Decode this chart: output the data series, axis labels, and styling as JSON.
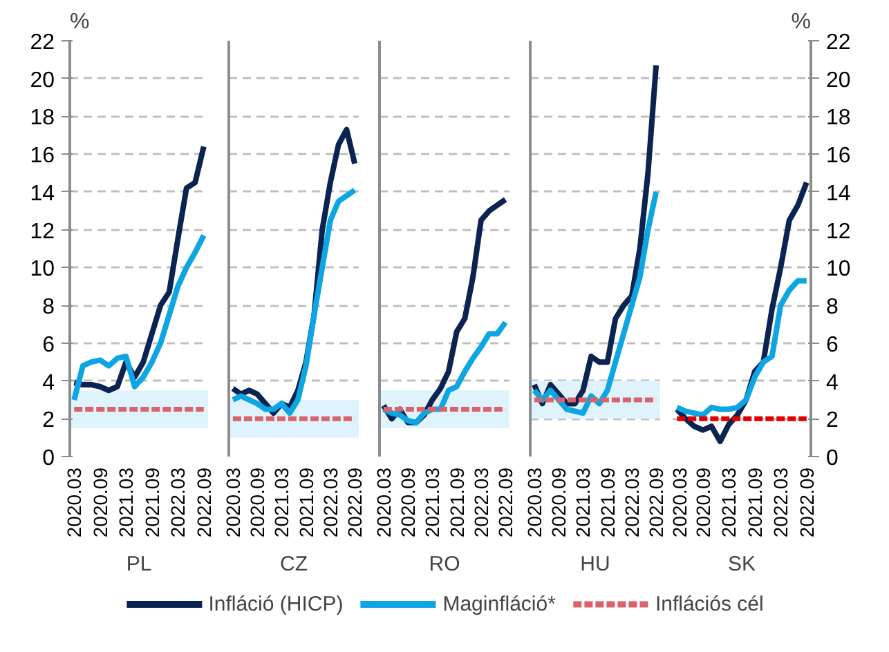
{
  "chart_data": [
    {
      "type": "line",
      "xlabel": "PL",
      "ylabel": "%",
      "x": [
        "2020-03",
        "2020-05",
        "2020-07",
        "2020-09",
        "2020-11",
        "2021-01",
        "2021-03",
        "2021-05",
        "2021-07",
        "2021-09",
        "2021-11",
        "2022-01",
        "2022-03",
        "2022-05",
        "2022-07",
        "2022-09"
      ],
      "xlim": [
        "2020-02",
        "2022-10"
      ],
      "xticks": [
        {
          "value": "2020-03",
          "label": "2020.03"
        },
        {
          "value": "2020-09",
          "label": "2020.09"
        },
        {
          "value": "2021-03",
          "label": "2021.03"
        },
        {
          "value": "2021-09",
          "label": "2021.09"
        },
        {
          "value": "2022-03",
          "label": "2022.03"
        },
        {
          "value": "2022-09",
          "label": "2022.09"
        }
      ],
      "ylim": [
        0,
        22
      ],
      "yticks": [
        0,
        2,
        4,
        6,
        8,
        10,
        12,
        14,
        16,
        18,
        20,
        22
      ],
      "grid": "y",
      "legend": "bottom",
      "bands": [
        {
          "axis": "y",
          "from": 1.5,
          "to": 3.5,
          "color": "#dff3fc"
        }
      ],
      "series": [
        {
          "name": "Infláció (HICP)",
          "color": "#0b2350",
          "values": [
            3.9,
            3.8,
            3.8,
            3.7,
            3.5,
            3.7,
            5.0,
            4.2,
            5.0,
            6.5,
            8.0,
            8.7,
            11.5,
            14.2,
            14.5,
            16.4
          ]
        },
        {
          "name": "Maginfláció*",
          "color": "#0ea5e3",
          "values": [
            3.0,
            4.8,
            5.0,
            5.1,
            4.8,
            5.2,
            5.3,
            3.7,
            4.2,
            5.0,
            6.0,
            7.5,
            9.0,
            10.0,
            10.8,
            11.7
          ]
        },
        {
          "name": "Inflációs cél",
          "color": "#d9636a",
          "line_style": "dashed",
          "values": [
            2.5,
            2.5,
            2.5,
            2.5,
            2.5,
            2.5,
            2.5,
            2.5,
            2.5,
            2.5,
            2.5,
            2.5,
            2.5,
            2.5,
            2.5,
            2.5
          ]
        }
      ]
    },
    {
      "type": "line",
      "xlabel": "CZ",
      "x": [
        "2020-03",
        "2020-05",
        "2020-07",
        "2020-09",
        "2020-11",
        "2021-01",
        "2021-03",
        "2021-05",
        "2021-07",
        "2021-09",
        "2021-11",
        "2022-01",
        "2022-03",
        "2022-05",
        "2022-07",
        "2022-09"
      ],
      "xlim": [
        "2020-02",
        "2022-10"
      ],
      "xticks": [
        {
          "value": "2020-03",
          "label": "2020.03"
        },
        {
          "value": "2020-09",
          "label": "2020.09"
        },
        {
          "value": "2021-03",
          "label": "2021.03"
        },
        {
          "value": "2021-09",
          "label": "2021.09"
        },
        {
          "value": "2022-03",
          "label": "2022.03"
        },
        {
          "value": "2022-09",
          "label": "2022.09"
        }
      ],
      "ylim": [
        0,
        22
      ],
      "yticks": [
        0,
        2,
        4,
        6,
        8,
        10,
        12,
        14,
        16,
        18,
        20,
        22
      ],
      "grid": "y",
      "tick_labels": "x",
      "bands": [
        {
          "axis": "y",
          "from": 1,
          "to": 3,
          "color": "#dff3fc"
        }
      ],
      "series": [
        {
          "color": "#0b2350",
          "values": [
            3.6,
            3.3,
            3.5,
            3.3,
            2.8,
            2.3,
            2.8,
            2.6,
            3.5,
            5.0,
            7.5,
            12.0,
            14.5,
            16.5,
            17.3,
            15.5
          ]
        },
        {
          "color": "#0ea5e3",
          "values": [
            3.0,
            3.2,
            3.0,
            2.8,
            2.5,
            2.5,
            2.8,
            2.3,
            3.0,
            4.8,
            7.5,
            10.0,
            12.5,
            13.5,
            13.8,
            14.1
          ]
        },
        {
          "color": "#d9636a",
          "line_style": "dashed",
          "values": [
            2,
            2,
            2,
            2,
            2,
            2,
            2,
            2,
            2,
            2,
            2,
            2,
            2,
            2,
            2,
            2
          ]
        }
      ]
    },
    {
      "type": "line",
      "xlabel": "RO",
      "x": [
        "2020-03",
        "2020-05",
        "2020-07",
        "2020-09",
        "2020-11",
        "2021-01",
        "2021-03",
        "2021-05",
        "2021-07",
        "2021-09",
        "2021-11",
        "2022-01",
        "2022-03",
        "2022-05",
        "2022-07",
        "2022-09"
      ],
      "xlim": [
        "2020-02",
        "2022-10"
      ],
      "xticks": [
        {
          "value": "2020-03",
          "label": "2020.03"
        },
        {
          "value": "2020-09",
          "label": "2020.09"
        },
        {
          "value": "2021-03",
          "label": "2021.03"
        },
        {
          "value": "2021-09",
          "label": "2021.09"
        },
        {
          "value": "2022-03",
          "label": "2022.03"
        },
        {
          "value": "2022-09",
          "label": "2022.09"
        }
      ],
      "ylim": [
        0,
        22
      ],
      "yticks": [
        0,
        2,
        4,
        6,
        8,
        10,
        12,
        14,
        16,
        18,
        20,
        22
      ],
      "grid": "y",
      "tick_labels": "x",
      "bands": [
        {
          "axis": "y",
          "from": 1.5,
          "to": 3.5,
          "color": "#dff3fc"
        }
      ],
      "series": [
        {
          "color": "#0b2350",
          "values": [
            2.7,
            2.0,
            2.5,
            1.8,
            1.8,
            2.2,
            3.0,
            3.6,
            4.5,
            6.6,
            7.3,
            9.5,
            12.5,
            13.0,
            13.3,
            13.6
          ]
        },
        {
          "color": "#0ea5e3",
          "values": [
            2.5,
            2.3,
            2.2,
            1.9,
            1.8,
            2.3,
            2.5,
            2.5,
            3.5,
            3.7,
            4.5,
            5.2,
            5.8,
            6.5,
            6.5,
            7.1
          ]
        },
        {
          "color": "#d9636a",
          "line_style": "dashed",
          "values": [
            2.5,
            2.5,
            2.5,
            2.5,
            2.5,
            2.5,
            2.5,
            2.5,
            2.5,
            2.5,
            2.5,
            2.5,
            2.5,
            2.5,
            2.5,
            2.5
          ]
        }
      ]
    },
    {
      "type": "line",
      "xlabel": "HU",
      "x": [
        "2020-03",
        "2020-05",
        "2020-07",
        "2020-09",
        "2020-11",
        "2021-01",
        "2021-03",
        "2021-05",
        "2021-07",
        "2021-09",
        "2021-11",
        "2022-01",
        "2022-03",
        "2022-05",
        "2022-07",
        "2022-09"
      ],
      "xlim": [
        "2020-02",
        "2022-10"
      ],
      "xticks": [
        {
          "value": "2020-03",
          "label": "2020.03"
        },
        {
          "value": "2020-09",
          "label": "2020.09"
        },
        {
          "value": "2021-03",
          "label": "2021.03"
        },
        {
          "value": "2021-09",
          "label": "2021.09"
        },
        {
          "value": "2022-03",
          "label": "2022.03"
        },
        {
          "value": "2022-09",
          "label": "2022.09"
        }
      ],
      "ylim": [
        0,
        22
      ],
      "yticks": [
        0,
        2,
        4,
        6,
        8,
        10,
        12,
        14,
        16,
        18,
        20,
        22
      ],
      "grid": "y",
      "tick_labels": "x",
      "bands": [
        {
          "axis": "y",
          "from": 2,
          "to": 4,
          "color": "#dff3fc"
        }
      ],
      "series": [
        {
          "color": "#0b2350",
          "values": [
            3.8,
            2.8,
            3.8,
            3.3,
            2.8,
            2.8,
            3.5,
            5.3,
            5.0,
            5.0,
            7.3,
            8.0,
            8.5,
            11.0,
            15.0,
            20.7
          ]
        },
        {
          "color": "#0ea5e3",
          "values": [
            3.5,
            3.0,
            3.5,
            3.0,
            2.5,
            2.4,
            2.3,
            3.2,
            2.8,
            3.5,
            5.0,
            6.5,
            8.0,
            9.5,
            12.0,
            14.0
          ]
        },
        {
          "color": "#d9636a",
          "line_style": "dashed",
          "values": [
            3,
            3,
            3,
            3,
            3,
            3,
            3,
            3,
            3,
            3,
            3,
            3,
            3,
            3,
            3,
            3
          ]
        }
      ]
    },
    {
      "type": "line",
      "xlabel": "SK",
      "ylabel": "%",
      "x": [
        "2020-03",
        "2020-05",
        "2020-07",
        "2020-09",
        "2020-11",
        "2021-01",
        "2021-03",
        "2021-05",
        "2021-07",
        "2021-09",
        "2021-11",
        "2022-01",
        "2022-03",
        "2022-05",
        "2022-07",
        "2022-09"
      ],
      "xlim": [
        "2020-02",
        "2022-10"
      ],
      "xticks": [
        {
          "value": "2020-03",
          "label": "2020.03"
        },
        {
          "value": "2020-09",
          "label": "2020.09"
        },
        {
          "value": "2021-03",
          "label": "2021.03"
        },
        {
          "value": "2021-09",
          "label": "2021.09"
        },
        {
          "value": "2022-03",
          "label": "2022.03"
        },
        {
          "value": "2022-09",
          "label": "2022.09"
        }
      ],
      "ylim": [
        0,
        22
      ],
      "yticks": [
        0,
        2,
        4,
        6,
        8,
        10,
        12,
        14,
        16,
        18,
        20,
        22
      ],
      "grid": "y",
      "series": [
        {
          "color": "#0b2350",
          "values": [
            2.5,
            2.0,
            1.6,
            1.4,
            1.6,
            0.8,
            1.7,
            2.2,
            3.0,
            4.5,
            5.0,
            7.8,
            10.0,
            12.5,
            13.3,
            14.5
          ]
        },
        {
          "color": "#0ea5e3",
          "values": [
            2.6,
            2.4,
            2.3,
            2.2,
            2.6,
            2.5,
            2.5,
            2.6,
            3.0,
            4.2,
            5.0,
            5.3,
            8.0,
            8.8,
            9.3,
            9.3
          ]
        },
        {
          "color": "#e00000",
          "line_style": "dashed",
          "values": [
            2,
            2,
            2,
            2,
            2,
            2,
            2,
            2,
            2,
            2,
            2,
            2,
            2,
            2,
            2,
            2
          ]
        }
      ]
    }
  ]
}
